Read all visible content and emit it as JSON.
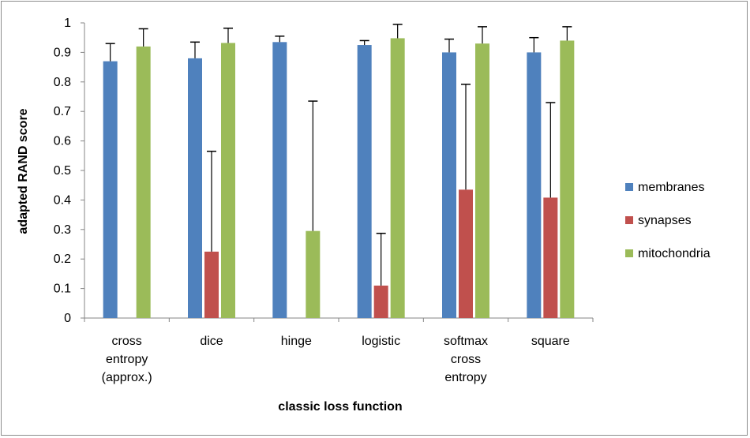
{
  "chart_data": {
    "type": "bar",
    "xlabel": "classic loss function",
    "ylabel": "adapted RAND score",
    "ylim": [
      0,
      1
    ],
    "yticks": [
      "0",
      "0.1",
      "0.2",
      "0.3",
      "0.4",
      "0.5",
      "0.6",
      "0.7",
      "0.8",
      "0.9",
      "1"
    ],
    "grid": false,
    "legend_position": "right",
    "categories": [
      [
        "cross",
        "entropy",
        "(approx.)"
      ],
      [
        "dice"
      ],
      [
        "hinge"
      ],
      [
        "logistic"
      ],
      [
        "softmax",
        "cross",
        "entropy"
      ],
      [
        "square"
      ]
    ],
    "series": [
      {
        "name": "membranes",
        "color": "#4f81bd",
        "values": [
          0.87,
          0.88,
          0.935,
          0.925,
          0.9,
          0.9
        ],
        "error": [
          0.06,
          0.055,
          0.02,
          0.015,
          0.045,
          0.05
        ]
      },
      {
        "name": "synapses",
        "color": "#c0504d",
        "values": [
          0.0,
          0.225,
          0.0,
          0.11,
          0.435,
          0.408
        ],
        "error": [
          0.0,
          0.34,
          0.0,
          0.177,
          0.357,
          0.322
        ]
      },
      {
        "name": "mitochondria",
        "color": "#9bbb59",
        "values": [
          0.92,
          0.932,
          0.295,
          0.948,
          0.93,
          0.94
        ],
        "error": [
          0.06,
          0.05,
          0.44,
          0.047,
          0.057,
          0.047
        ]
      }
    ]
  }
}
